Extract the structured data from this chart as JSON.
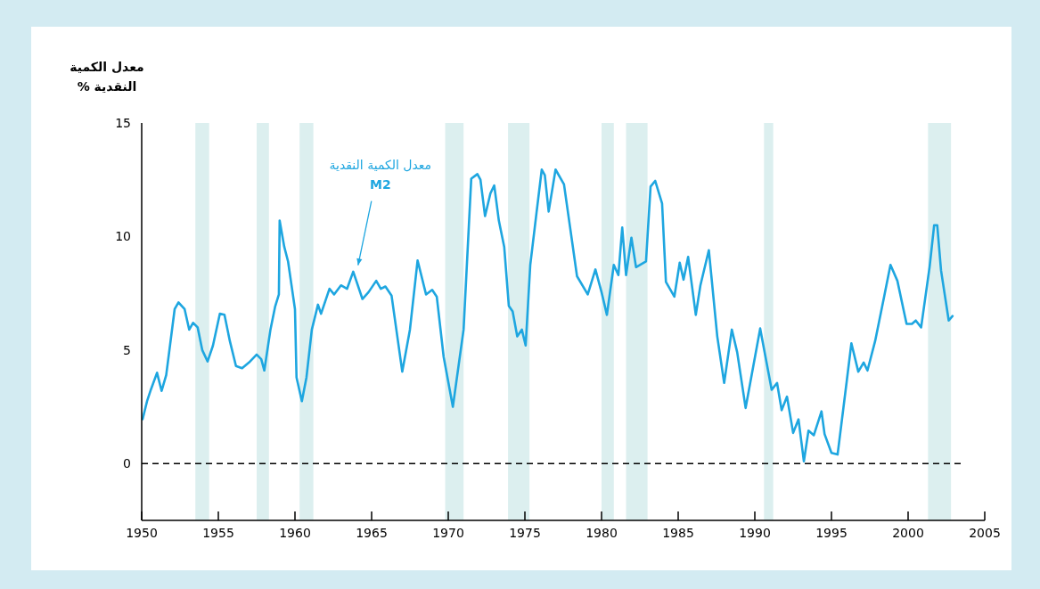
{
  "chart_data": {
    "type": "line",
    "ylabel": "معدل الكمية\nالنقدية %",
    "annotations": [
      {
        "text": "معدل الكمية النقدية\nM2",
        "x": 1964.0,
        "y": 8.5
      }
    ],
    "xlim": [
      1950,
      2005
    ],
    "xticks": [
      1950,
      1955,
      1960,
      1965,
      1970,
      1975,
      1980,
      1985,
      1990,
      1995,
      2000,
      2005
    ],
    "ylim": [
      -2.5,
      15
    ],
    "yticks": [
      0,
      5,
      10,
      15
    ],
    "ref_lines": [
      {
        "axis": "y",
        "value": 0,
        "color": "#000000",
        "line_style": "dashed"
      }
    ],
    "bands": [
      {
        "axis": "x",
        "from": 1953.5,
        "to": 1954.4,
        "color": "#dcefef"
      },
      {
        "axis": "x",
        "from": 1957.5,
        "to": 1958.3,
        "color": "#dcefef"
      },
      {
        "axis": "x",
        "from": 1960.3,
        "to": 1961.2,
        "color": "#dcefef"
      },
      {
        "axis": "x",
        "from": 1969.8,
        "to": 1971.0,
        "color": "#dcefef"
      },
      {
        "axis": "x",
        "from": 1973.9,
        "to": 1975.3,
        "color": "#dcefef"
      },
      {
        "axis": "x",
        "from": 1980.0,
        "to": 1980.8,
        "color": "#dcefef"
      },
      {
        "axis": "x",
        "from": 1981.6,
        "to": 1983.0,
        "color": "#dcefef"
      },
      {
        "axis": "x",
        "from": 1990.6,
        "to": 1991.2,
        "color": "#dcefef"
      },
      {
        "axis": "x",
        "from": 2001.3,
        "to": 2002.8,
        "color": "#dcefef"
      }
    ],
    "series": [
      {
        "color": "#1ea6e0",
        "x": [
          1950.06,
          1950.35,
          1950.6,
          1951.0,
          1951.3,
          1951.6,
          1952.15,
          1952.4,
          1952.8,
          1953.1,
          1953.35,
          1953.65,
          1953.95,
          1954.3,
          1954.65,
          1955.1,
          1955.4,
          1955.75,
          1956.15,
          1956.55,
          1957.0,
          1957.5,
          1957.8,
          1958.0,
          1958.4,
          1958.7,
          1958.95,
          1959.0,
          1959.3,
          1959.55,
          1960.0,
          1960.1,
          1960.45,
          1960.75,
          1961.1,
          1961.5,
          1961.7,
          1962.25,
          1962.55,
          1963.0,
          1963.4,
          1963.8,
          1964.4,
          1964.8,
          1965.3,
          1965.6,
          1965.9,
          1966.3,
          1967.0,
          1967.5,
          1968.0,
          1968.55,
          1968.95,
          1969.25,
          1969.7,
          1970.3,
          1971.0,
          1971.5,
          1971.9,
          1972.1,
          1972.4,
          1972.75,
          1973.0,
          1973.3,
          1973.65,
          1973.95,
          1974.2,
          1974.5,
          1974.8,
          1975.05,
          1975.35,
          1975.75,
          1976.1,
          1976.3,
          1976.55,
          1977.0,
          1977.55,
          1978.4,
          1979.1,
          1979.6,
          1980.0,
          1980.35,
          1980.8,
          1981.1,
          1981.35,
          1981.6,
          1981.95,
          1982.25,
          1982.9,
          1983.2,
          1983.5,
          1983.95,
          1984.2,
          1984.75,
          1985.1,
          1985.35,
          1985.65,
          1986.15,
          1986.45,
          1987.0,
          1987.55,
          1988.0,
          1988.5,
          1988.85,
          1989.4,
          1990.35,
          1991.1,
          1991.45,
          1991.75,
          1992.1,
          1992.5,
          1992.85,
          1993.2,
          1993.5,
          1993.85,
          1994.35,
          1994.55,
          1995.0,
          1995.4,
          1996.0,
          1996.3,
          1996.75,
          1997.1,
          1997.35,
          1997.85,
          1998.45,
          1998.85,
          1999.3,
          1999.9,
          2000.25,
          2000.5,
          2000.85,
          2001.4,
          2001.7,
          2001.9,
          2002.15,
          2002.65,
          2002.9
        ],
        "values": [
          1.96,
          2.75,
          3.26,
          4.0,
          3.2,
          3.9,
          6.8,
          7.1,
          6.8,
          5.9,
          6.2,
          6.0,
          5.0,
          4.5,
          5.2,
          6.6,
          6.55,
          5.4,
          4.3,
          4.2,
          4.45,
          4.8,
          4.6,
          4.1,
          5.9,
          6.9,
          7.45,
          10.7,
          9.55,
          8.9,
          6.8,
          3.8,
          2.75,
          3.8,
          5.9,
          7.0,
          6.6,
          7.7,
          7.45,
          7.85,
          7.7,
          8.45,
          7.25,
          7.55,
          8.05,
          7.7,
          7.8,
          7.4,
          4.05,
          5.9,
          8.95,
          7.45,
          7.65,
          7.35,
          4.7,
          2.5,
          5.9,
          12.55,
          12.75,
          12.5,
          10.9,
          11.9,
          12.25,
          10.7,
          9.55,
          6.95,
          6.7,
          5.6,
          5.9,
          5.2,
          8.75,
          11.0,
          12.95,
          12.7,
          11.1,
          12.95,
          12.3,
          8.25,
          7.45,
          8.55,
          7.55,
          6.55,
          8.75,
          8.3,
          10.4,
          8.3,
          9.95,
          8.65,
          8.9,
          12.2,
          12.45,
          11.45,
          8.0,
          7.35,
          8.85,
          8.1,
          9.1,
          6.55,
          7.85,
          9.4,
          5.6,
          3.55,
          5.9,
          4.9,
          2.45,
          5.95,
          3.25,
          3.55,
          2.35,
          2.95,
          1.35,
          1.95,
          0.1,
          1.45,
          1.25,
          2.3,
          1.3,
          0.47,
          0.4,
          3.65,
          5.3,
          4.05,
          4.45,
          4.1,
          5.4,
          7.4,
          8.75,
          8.05,
          6.15,
          6.15,
          6.3,
          6.0,
          8.65,
          10.5,
          10.5,
          8.5,
          6.3,
          6.5
        ]
      }
    ]
  }
}
